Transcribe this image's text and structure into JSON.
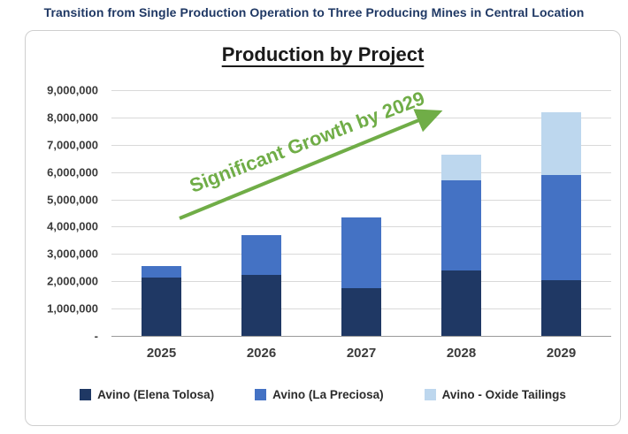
{
  "header": {
    "title": "Transition from Single Production Operation to Three Producing Mines in Central Location"
  },
  "chart": {
    "title": "Production by Project",
    "annotation": "Significant Growth by 2029"
  },
  "colors": {
    "header_text": "#1F3864",
    "annotation_green": "#70AD47",
    "gridline": "#d9d9d9",
    "axis_line": "#9a9a9a"
  },
  "chart_data": {
    "type": "bar",
    "stacked": true,
    "title": "Production by Project",
    "categories": [
      "2025",
      "2026",
      "2027",
      "2028",
      "2029"
    ],
    "series": [
      {
        "name": "Avino (Elena Tolosa)",
        "color": "#1F3864",
        "values": [
          2150000,
          2250000,
          1750000,
          2400000,
          2050000
        ]
      },
      {
        "name": "Avino (La Preciosa)",
        "color": "#4472C4",
        "values": [
          400000,
          1450000,
          2600000,
          3300000,
          3850000
        ]
      },
      {
        "name": "Avino - Oxide Tailings",
        "color": "#BDD7EE",
        "values": [
          0,
          0,
          0,
          950000,
          2300000
        ]
      }
    ],
    "totals": [
      2550000,
      3700000,
      4350000,
      6650000,
      8200000
    ],
    "ylim": [
      0,
      9000000
    ],
    "ytick_step": 1000000,
    "ytick_labels_top_down": [
      "9,000,000",
      "8,000,000",
      "7,000,000",
      "6,000,000",
      "5,000,000",
      "4,000,000",
      "3,000,000",
      "2,000,000",
      "1,000,000",
      "-"
    ],
    "grid": true,
    "legend_position": "bottom",
    "annotation": "Significant Growth by 2029"
  }
}
